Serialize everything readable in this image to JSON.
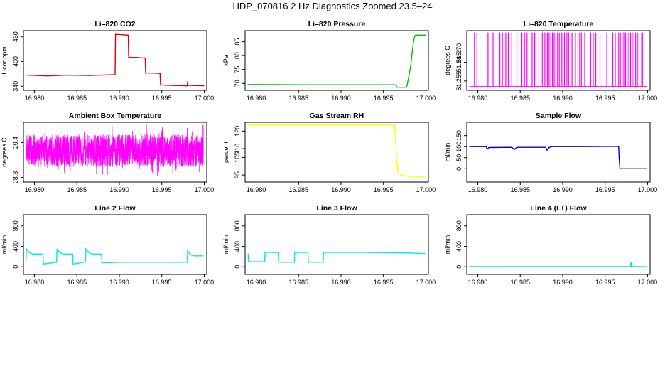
{
  "title": "HDP_070816  2 Hz Diagnostics Zoomed 23.5–24",
  "chart_data": [
    {
      "type": "line",
      "title": "Li–820 CO2",
      "xlabel": "",
      "ylabel": "Licor ppm",
      "color": "#e00000",
      "xlim": [
        16.9787,
        17.0003
      ],
      "ylim": [
        330,
        475
      ],
      "xticks": [
        16.98,
        16.985,
        16.99,
        16.995,
        17.0
      ],
      "xtick_labels": [
        "16.980",
        "16.985",
        "16.990",
        "16.995",
        "17.000"
      ],
      "yticks": [
        340,
        400,
        460
      ],
      "series": [
        {
          "x": [
            16.979,
            16.9815,
            16.984,
            16.9865,
            16.9895,
            16.98955,
            16.9905,
            16.99105,
            16.9911,
            16.992,
            16.99305,
            16.9931,
            16.994,
            16.9948,
            16.99485,
            16.996,
            16.998,
            16.99805,
            16.9981,
            16.9982,
            17.0
          ],
          "y": [
            367,
            365,
            367,
            366,
            368,
            466,
            465,
            464,
            410,
            410,
            408,
            372,
            372,
            371,
            343,
            342,
            341,
            352,
            342,
            342,
            341
          ]
        }
      ]
    },
    {
      "type": "line",
      "title": "Li–820 Pressure",
      "xlabel": "",
      "ylabel": "kPa",
      "color": "#00bb00",
      "xlim": [
        16.9787,
        17.0003
      ],
      "ylim": [
        67.5,
        89
      ],
      "xticks": [
        16.98,
        16.985,
        16.99,
        16.995,
        17.0
      ],
      "xtick_labels": [
        "16.980",
        "16.985",
        "16.990",
        "16.995",
        "17.000"
      ],
      "yticks": [
        70,
        75,
        80,
        85
      ],
      "series": [
        {
          "x": [
            16.979,
            16.9855,
            16.99,
            16.9955,
            16.9965,
            16.99655,
            16.9977,
            16.9978,
            16.9979,
            16.9982,
            16.99835,
            16.9985,
            16.9986,
            16.99875,
            17.0
          ],
          "y": [
            69.6,
            69.5,
            69.5,
            69.5,
            69.5,
            68.6,
            68.6,
            69.5,
            71,
            76,
            80,
            84,
            86,
            87.4,
            87.4
          ]
        }
      ]
    },
    {
      "type": "line",
      "title": "Li–820 Temperature",
      "xlabel": "",
      "ylabel": "degrees C",
      "color": "#ff00ff",
      "xlim": [
        16.9787,
        17.0003
      ],
      "ylim": [
        51.25,
        51.282
      ],
      "xticks": [
        16.98,
        16.985,
        16.99,
        16.995,
        17.0
      ],
      "xtick_labels": [
        "16.980",
        "16.985",
        "16.990",
        "16.995",
        "17.000"
      ],
      "yticks": [
        51.255,
        51.265,
        51.27
      ],
      "ytick_labels": [
        "51.255",
        "51.265",
        "51.270"
      ],
      "levels": [
        51.252,
        51.281
      ],
      "spike_times": [
        16.9796,
        16.9799,
        16.9812,
        16.9818,
        16.9826,
        16.9829,
        16.9833,
        16.9836,
        16.984,
        16.9846,
        16.9852,
        16.9855,
        16.9858,
        16.9864,
        16.9867,
        16.9872,
        16.9876,
        16.9879,
        16.9882,
        16.9884,
        16.9886,
        16.9888,
        16.989,
        16.9892,
        16.9894,
        16.9896,
        16.9899,
        16.9902,
        16.9905,
        16.9907,
        16.9911,
        16.9915,
        16.9918,
        16.992,
        16.9922,
        16.9926,
        16.9933,
        16.9936,
        16.9939,
        16.9944,
        16.9952,
        16.9959,
        16.9962,
        16.9966,
        16.9968,
        16.997,
        16.9972,
        16.9974,
        16.9976,
        16.9978,
        16.998,
        16.9982,
        16.9984,
        16.9986,
        16.9988,
        16.999,
        16.9993,
        16.9994
      ]
    },
    {
      "type": "line",
      "title": "Ambient Box Temperature",
      "xlabel": "",
      "ylabel": "degrees C",
      "color": "#ff00ff",
      "xlim": [
        16.9787,
        17.0003
      ],
      "ylim": [
        28.72,
        29.75
      ],
      "xticks": [
        16.98,
        16.985,
        16.99,
        16.995,
        17.0
      ],
      "xtick_labels": [
        "16.980",
        "16.985",
        "16.990",
        "16.995",
        "17.000"
      ],
      "yticks": [
        28.8,
        29.4
      ],
      "noise_band": {
        "x_start": 16.979,
        "x_end": 16.9999,
        "center": 29.26,
        "half_range": 0.28,
        "outer_range": 0.45,
        "samples": 1600
      }
    },
    {
      "type": "line",
      "title": "Gas Stream RH",
      "xlabel": "",
      "ylabel": "percent",
      "color": "#ffff00",
      "xlim": [
        16.9787,
        17.0003
      ],
      "ylim": [
        91,
        125
      ],
      "xticks": [
        16.98,
        16.985,
        16.99,
        16.995,
        17.0
      ],
      "xtick_labels": [
        "16.980",
        "16.985",
        "16.990",
        "16.995",
        "17.000"
      ],
      "yticks": [
        95,
        105,
        110,
        120
      ],
      "series": [
        {
          "x": [
            16.979,
            16.985,
            16.99,
            16.9963,
            16.9964,
            16.99655,
            16.9967,
            16.9969,
            16.9972,
            16.9976,
            16.998,
            16.9985,
            16.999,
            16.9995,
            16.9999
          ],
          "y": [
            123.5,
            123.5,
            123.5,
            123.5,
            118,
            104,
            97,
            95.5,
            95,
            94.5,
            94.2,
            94,
            94,
            94,
            94
          ]
        }
      ]
    },
    {
      "type": "line",
      "title": "Sample Flow",
      "xlabel": "",
      "ylabel": "ml/min",
      "color": "#0000cc",
      "xlim": [
        16.9787,
        17.0003
      ],
      "ylim": [
        -60,
        210
      ],
      "xticks": [
        16.98,
        16.985,
        16.99,
        16.995,
        17.0
      ],
      "xtick_labels": [
        "16.980",
        "16.985",
        "16.990",
        "16.995",
        "17.000"
      ],
      "yticks": [
        0,
        50,
        100,
        150
      ],
      "series": [
        {
          "x": [
            16.979,
            16.981,
            16.9811,
            16.9813,
            16.984,
            16.9843,
            16.9846,
            16.988,
            16.98815,
            16.9884,
            16.9887,
            16.992,
            16.995,
            16.9966,
            16.99665,
            16.99675,
            16.997,
            16.9999
          ],
          "y": [
            100,
            100,
            88,
            96,
            97,
            87,
            97,
            97,
            84,
            96,
            100,
            100,
            101,
            101,
            50,
            0,
            0,
            0
          ]
        }
      ]
    },
    {
      "type": "line",
      "title": "Line 2 Flow",
      "xlabel": "",
      "ylabel": "ml/min",
      "color": "#00e5ee",
      "xlim": [
        16.9787,
        17.0003
      ],
      "ylim": [
        -150,
        1020
      ],
      "xticks": [
        16.98,
        16.985,
        16.99,
        16.995,
        17.0
      ],
      "xtick_labels": [
        "16.980",
        "16.985",
        "16.990",
        "16.995",
        "17.000"
      ],
      "yticks": [
        0,
        400,
        800
      ],
      "series": [
        {
          "x": [
            16.979,
            16.97905,
            16.9794,
            16.9798,
            16.981,
            16.98105,
            16.9826,
            16.98265,
            16.983,
            16.9834,
            16.9845,
            16.98455,
            16.986,
            16.98605,
            16.9864,
            16.9868,
            16.9879,
            16.98795,
            16.99,
            16.998,
            16.99805,
            16.9984,
            16.9988,
            16.9999
          ],
          "y": [
            100,
            350,
            280,
            250,
            250,
            55,
            90,
            340,
            280,
            250,
            250,
            55,
            95,
            350,
            280,
            250,
            250,
            80,
            90,
            90,
            310,
            240,
            215,
            215
          ]
        }
      ]
    },
    {
      "type": "line",
      "title": "Line 3 Flow",
      "xlabel": "",
      "ylabel": "ml/min",
      "color": "#00e5ee",
      "xlim": [
        16.9787,
        17.0003
      ],
      "ylim": [
        -150,
        1020
      ],
      "xticks": [
        16.98,
        16.985,
        16.99,
        16.995,
        17.0
      ],
      "xtick_labels": [
        "16.980",
        "16.985",
        "16.990",
        "16.995",
        "17.000"
      ],
      "yticks": [
        0,
        400,
        800
      ],
      "series": [
        {
          "x": [
            16.979,
            16.97905,
            16.9791,
            16.981,
            16.98105,
            16.9826,
            16.98265,
            16.9845,
            16.98455,
            16.9861,
            16.98615,
            16.9879,
            16.98795,
            16.993,
            16.998,
            16.9999
          ],
          "y": [
            250,
            250,
            100,
            100,
            280,
            280,
            90,
            90,
            280,
            280,
            90,
            90,
            280,
            280,
            270,
            260
          ]
        }
      ]
    },
    {
      "type": "line",
      "title": "Line 4 (LT) Flow",
      "xlabel": "",
      "ylabel": "ml/min",
      "color": "#00e5ee",
      "xlim": [
        16.9787,
        17.0003
      ],
      "ylim": [
        -150,
        1020
      ],
      "xticks": [
        16.98,
        16.985,
        16.99,
        16.995,
        17.0
      ],
      "xtick_labels": [
        "16.980",
        "16.985",
        "16.990",
        "16.995",
        "17.000"
      ],
      "yticks": [
        0,
        400,
        800
      ],
      "series": [
        {
          "x": [
            16.979,
            16.998,
            16.99805,
            16.9981,
            16.99815,
            16.9999
          ],
          "y": [
            5,
            5,
            100,
            5,
            5,
            5
          ]
        }
      ]
    }
  ]
}
